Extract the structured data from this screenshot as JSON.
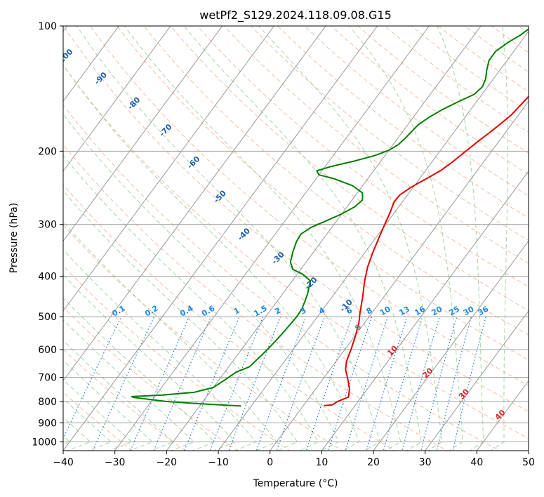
{
  "chart_data": {
    "type": "line",
    "subtype": "skew-t log-p diagram",
    "title": "wetPf2_S129.2024.118.09.08.G15",
    "xlabel": "Temperature (°C)",
    "ylabel": "Pressure (hPa)",
    "xlim": [
      -40,
      50
    ],
    "ylim": [
      1050,
      100
    ],
    "y_scale": "log",
    "grid": true,
    "x_ticks": [
      -40,
      -30,
      -20,
      -10,
      0,
      10,
      20,
      30,
      40,
      50
    ],
    "y_ticks": [
      1000,
      900,
      800,
      700,
      600,
      500,
      400,
      300,
      200,
      100
    ],
    "dry_adiabat_labels": [
      "-100",
      "-90",
      "-80",
      "-70",
      "-60",
      "-50",
      "-40",
      "-30",
      "-20",
      "-10"
    ],
    "moist_adiabat_labels": [
      "0",
      "10",
      "20",
      "30",
      "40"
    ],
    "mixing_ratio_labels": [
      "0.1",
      "0.2",
      "0.4",
      "0.6",
      "1",
      "1.5",
      "2",
      "3",
      "4",
      "6",
      "8",
      "10",
      "13",
      "16",
      "20",
      "25",
      "30",
      "36"
    ],
    "colors": {
      "temperature": "#e00000",
      "dewpoint": "#008000",
      "isotherm": "#9a9a9a",
      "isobar": "#a0a0a0",
      "dry_adiabat": "#f4a582",
      "moist_adiabat": "#8fcc8f",
      "mixing_ratio": "#1f78d1",
      "dry_label": "#1f5fa8",
      "moist_label": "#d62728",
      "mix_label": "#1e88e5"
    },
    "series": [
      {
        "name": "Temperature",
        "points": [
          [
            4.0,
            818
          ],
          [
            5.5,
            815
          ],
          [
            6.0,
            800
          ],
          [
            7.5,
            780
          ],
          [
            6.5,
            745
          ],
          [
            4.5,
            700
          ],
          [
            3.0,
            670
          ],
          [
            2.0,
            640
          ],
          [
            1.2,
            600
          ],
          [
            0.2,
            560
          ],
          [
            -1.0,
            520
          ],
          [
            -2.3,
            490
          ],
          [
            -4.0,
            450
          ],
          [
            -6.0,
            410
          ],
          [
            -7.4,
            380
          ],
          [
            -8.5,
            350
          ],
          [
            -9.5,
            320
          ],
          [
            -10.2,
            300
          ],
          [
            -10.9,
            280
          ],
          [
            -11.6,
            265
          ],
          [
            -11.5,
            255
          ],
          [
            -10.5,
            245
          ],
          [
            -9.5,
            238
          ],
          [
            -8.2,
            230
          ],
          [
            -7.0,
            222
          ],
          [
            -6.0,
            212
          ],
          [
            -5.0,
            200
          ],
          [
            -4.0,
            189
          ],
          [
            -3.0,
            180
          ],
          [
            -2.2,
            172
          ],
          [
            -1.4,
            164
          ],
          [
            -1.0,
            155
          ],
          [
            -0.6,
            146
          ],
          [
            -0.5,
            137
          ],
          [
            0.0,
            128
          ],
          [
            1.2,
            118
          ],
          [
            2.2,
            110
          ],
          [
            3.5,
            102
          ],
          [
            3.8,
            100
          ]
        ]
      },
      {
        "name": "Dewpoint",
        "points": [
          [
            -12.0,
            820
          ],
          [
            -20.0,
            810
          ],
          [
            -27.0,
            800
          ],
          [
            -34.0,
            782
          ],
          [
            -34.5,
            778
          ],
          [
            -29.0,
            772
          ],
          [
            -23.0,
            760
          ],
          [
            -20.0,
            740
          ],
          [
            -18.5,
            700
          ],
          [
            -17.8,
            680
          ],
          [
            -16.0,
            660
          ],
          [
            -15.3,
            620
          ],
          [
            -15.0,
            600
          ],
          [
            -14.6,
            570
          ],
          [
            -14.3,
            540
          ],
          [
            -14.0,
            500
          ],
          [
            -14.1,
            480
          ],
          [
            -14.6,
            460
          ],
          [
            -15.2,
            440
          ],
          [
            -16.5,
            410
          ],
          [
            -19.0,
            395
          ],
          [
            -21.5,
            385
          ],
          [
            -23.0,
            370
          ],
          [
            -24.0,
            350
          ],
          [
            -24.8,
            330
          ],
          [
            -25.0,
            316
          ],
          [
            -24.0,
            305
          ],
          [
            -22.0,
            294
          ],
          [
            -20.0,
            283
          ],
          [
            -18.5,
            272
          ],
          [
            -18.0,
            262
          ],
          [
            -19.0,
            252
          ],
          [
            -22.0,
            242
          ],
          [
            -26.5,
            233
          ],
          [
            -30.0,
            228
          ],
          [
            -31.0,
            223
          ],
          [
            -29.0,
            218
          ],
          [
            -25.0,
            211
          ],
          [
            -22.0,
            205
          ],
          [
            -20.0,
            199
          ],
          [
            -19.0,
            193
          ],
          [
            -18.6,
            187
          ],
          [
            -18.3,
            180
          ],
          [
            -18.0,
            173
          ],
          [
            -17.0,
            166
          ],
          [
            -15.5,
            159
          ],
          [
            -13.5,
            152
          ],
          [
            -11.5,
            146
          ],
          [
            -11.0,
            140
          ],
          [
            -11.5,
            134
          ],
          [
            -12.5,
            128
          ],
          [
            -13.5,
            121
          ],
          [
            -13.5,
            115
          ],
          [
            -12.5,
            110
          ],
          [
            -11.0,
            105
          ],
          [
            -10.0,
            100
          ]
        ]
      }
    ]
  }
}
